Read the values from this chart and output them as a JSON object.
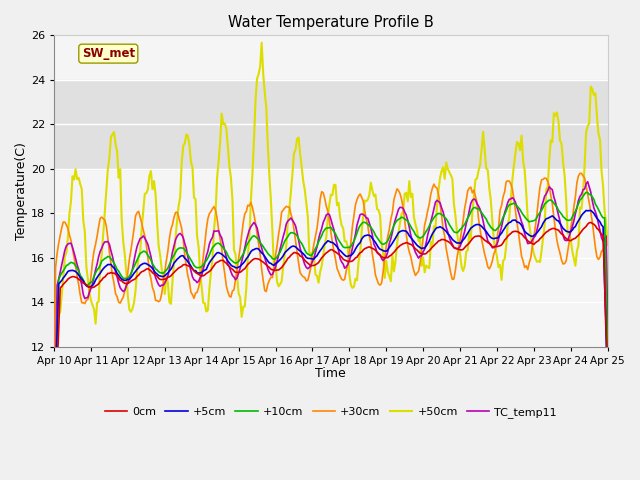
{
  "title": "Water Temperature Profile B",
  "xlabel": "Time",
  "ylabel": "Temperature(C)",
  "ylim": [
    12,
    26
  ],
  "xlim": [
    0,
    360
  ],
  "yticks": [
    12,
    14,
    16,
    18,
    20,
    22,
    24,
    26
  ],
  "xtick_labels": [
    "Apr 10",
    "Apr 11",
    "Apr 12",
    "Apr 13",
    "Apr 14",
    "Apr 15",
    "Apr 16",
    "Apr 17",
    "Apr 18",
    "Apr 19",
    "Apr 20",
    "Apr 21",
    "Apr 22",
    "Apr 23",
    "Apr 24",
    "Apr 25"
  ],
  "xtick_positions": [
    0,
    24,
    48,
    72,
    96,
    120,
    144,
    168,
    192,
    216,
    240,
    264,
    288,
    312,
    336,
    360
  ],
  "sw_met_label": "SW_met",
  "legend_labels": [
    "0cm",
    "+5cm",
    "+10cm",
    "+30cm",
    "+50cm",
    "TC_temp11"
  ],
  "legend_colors": [
    "#dd0000",
    "#0000dd",
    "#00bb00",
    "#ff8800",
    "#dddd00",
    "#bb00bb"
  ],
  "line_widths": [
    1.2,
    1.2,
    1.2,
    1.2,
    1.5,
    1.2
  ],
  "bg_color": "#f0f0f0",
  "plot_bg_color": "#f5f5f5",
  "shaded_band_lo": 20,
  "shaded_band_hi": 24,
  "shaded_band_color": "#e0e0e0"
}
